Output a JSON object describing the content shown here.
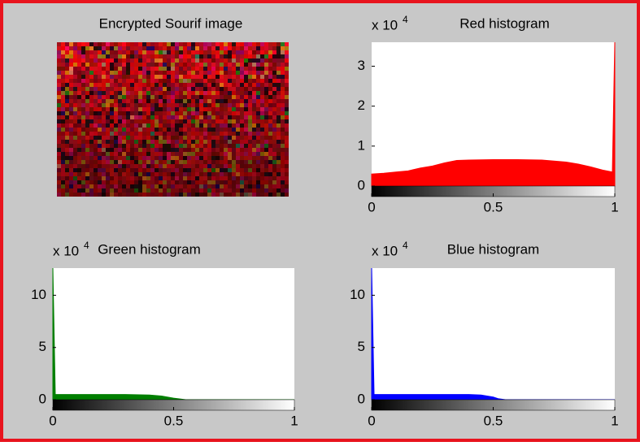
{
  "image_panel": {
    "title": "Encrypted Sourif image"
  },
  "chart_data": [
    {
      "type": "area",
      "title": "Red histogram",
      "exponent_base": "x 10",
      "exponent": "4",
      "color": "#ff0000",
      "x": [
        0,
        0.05,
        0.1,
        0.15,
        0.2,
        0.25,
        0.3,
        0.35,
        0.4,
        0.5,
        0.6,
        0.7,
        0.8,
        0.85,
        0.9,
        0.95,
        0.99,
        1
      ],
      "values": [
        0.3,
        0.32,
        0.35,
        0.38,
        0.45,
        0.5,
        0.58,
        0.64,
        0.65,
        0.66,
        0.66,
        0.65,
        0.6,
        0.55,
        0.48,
        0.4,
        0.35,
        3.6
      ],
      "xlim": [
        0,
        1
      ],
      "ylim": [
        0,
        3.6
      ],
      "xticks": [
        0,
        0.5,
        1
      ],
      "yticks": [
        0,
        1,
        2,
        3
      ]
    },
    {
      "type": "area",
      "title": "Green histogram",
      "exponent_base": "x 10",
      "exponent": "4",
      "color": "#007f00",
      "x": [
        0,
        0.01,
        0.1,
        0.2,
        0.3,
        0.4,
        0.45,
        0.5,
        0.55,
        0.6,
        1
      ],
      "values": [
        12.6,
        0.5,
        0.5,
        0.5,
        0.5,
        0.45,
        0.35,
        0.15,
        0,
        0,
        0
      ],
      "xlim": [
        0,
        1
      ],
      "ylim": [
        0,
        12.6
      ],
      "xticks": [
        0,
        0.5,
        1
      ],
      "yticks": [
        0,
        5,
        10
      ]
    },
    {
      "type": "area",
      "title": "Blue histogram",
      "exponent_base": "x 10",
      "exponent": "4",
      "color": "#0000ff",
      "x": [
        0,
        0.01,
        0.1,
        0.2,
        0.3,
        0.4,
        0.45,
        0.5,
        0.52,
        0.55,
        1
      ],
      "values": [
        12.6,
        0.5,
        0.5,
        0.5,
        0.5,
        0.5,
        0.45,
        0.25,
        0.1,
        0,
        0
      ],
      "xlim": [
        0,
        1
      ],
      "ylim": [
        0,
        12.6
      ],
      "xticks": [
        0,
        0.5,
        1
      ],
      "yticks": [
        0,
        5,
        10
      ]
    }
  ]
}
